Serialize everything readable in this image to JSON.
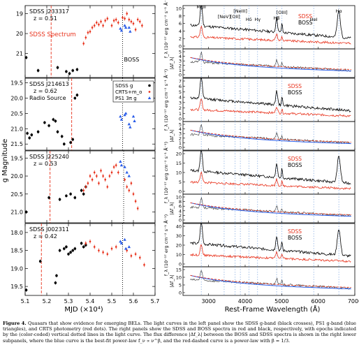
{
  "figure": {
    "left_xlabel": "MJD (×10⁴)",
    "left_ylabel": "g Magnitude",
    "right_xlabel": "Rest-Frame Wavelength (Å)",
    "left_xticks": [
      "5.1",
      "5.2",
      "5.3",
      "5.4",
      "5.5",
      "5.6",
      "5.7"
    ],
    "right_xticks": [
      "3000",
      "4000",
      "5000",
      "6000",
      "7000"
    ],
    "spec_ylabel": "f_λ (10⁻¹⁷ erg cm⁻² s⁻¹ Å⁻¹)",
    "diff_ylabel": "|Δf_λ|",
    "line_labels": [
      "MgII",
      "[NeV]",
      "[OII]",
      "[NeIII]",
      "Hδ",
      "Hγ",
      "Hβ",
      "[OIII]",
      "HeI",
      "Hα"
    ],
    "spec_legend": [
      "SDSS",
      "BOSS"
    ]
  },
  "colors": {
    "sdss": "#e8321c",
    "boss": "#000000",
    "crts": "#e8321c",
    "ps1": "#2a5ce8",
    "fit": "#2a5ce8",
    "vline": "#7da6e0"
  },
  "chart_data": [
    {
      "type": "scatter",
      "label": "SDSS J233317",
      "redshift": "z = 0.51",
      "annotations": [
        "SDSS Spectrum",
        "BOSS"
      ],
      "yticks": [
        "19",
        "20",
        "21"
      ],
      "ylim": [
        22.2,
        18.6
      ],
      "series": [
        {
          "name": "SDSS g",
          "marker": "circle",
          "x": [
            5.105,
            5.16,
            5.25,
            5.29,
            5.305,
            5.32,
            5.34
          ],
          "y": [
            21.2,
            21.85,
            21.7,
            21.9,
            22.0,
            21.85,
            21.8
          ]
        },
        {
          "name": "CRTS+m_o",
          "marker": "dot",
          "x": [
            5.37,
            5.38,
            5.39,
            5.4,
            5.41,
            5.42,
            5.43,
            5.44,
            5.45,
            5.46,
            5.47,
            5.48,
            5.5,
            5.51,
            5.52,
            5.53,
            5.55,
            5.56,
            5.57,
            5.58,
            5.59,
            5.6,
            5.61,
            5.62,
            5.63,
            5.64
          ],
          "y": [
            20.5,
            20.2,
            19.95,
            19.9,
            19.7,
            19.6,
            19.45,
            19.55,
            19.4,
            19.6,
            19.35,
            19.25,
            19.6,
            19.35,
            19.3,
            19.45,
            19.2,
            19.25,
            19.0,
            19.3,
            19.4,
            19.5,
            19.8,
            19.3,
            19.4,
            19.6
          ]
        },
        {
          "name": "PS1 3π g",
          "marker": "triangle",
          "x": [
            5.54,
            5.545,
            5.56,
            5.565,
            5.58,
            5.585
          ],
          "y": [
            19.75,
            19.85,
            19.6,
            19.7,
            19.7,
            19.9
          ]
        }
      ],
      "vlines": [
        {
          "x": 5.22,
          "style": "dashed",
          "color": "red"
        },
        {
          "x": 5.55,
          "style": "dotted",
          "color": "black"
        }
      ]
    },
    {
      "type": "scatter",
      "label": "SDSS J214613",
      "redshift": "z = 0.62",
      "note": "Radio Source",
      "legend": [
        "SDSS g",
        "CRTS+m_o",
        "PS1 3π g"
      ],
      "legend_position": "top-right",
      "yticks": [
        "19.5",
        "20.0",
        "20.5",
        "21.0",
        "21.5"
      ],
      "ylim": [
        21.7,
        19.35
      ],
      "series": [
        {
          "name": "SDSS g",
          "marker": "circle",
          "x": [
            5.11,
            5.12,
            5.13,
            5.16,
            5.19,
            5.21,
            5.23,
            5.24,
            5.25,
            5.27,
            5.28,
            5.31,
            5.32,
            5.33,
            5.34
          ],
          "y": [
            21.15,
            21.3,
            21.2,
            21.1,
            20.8,
            20.9,
            20.7,
            20.75,
            21.1,
            21.25,
            21.5,
            21.45,
            21.35,
            20.0,
            19.9
          ]
        },
        {
          "name": "CRTS+m_o",
          "marker": "dot",
          "x": [],
          "y": []
        },
        {
          "name": "PS1 3π g",
          "marker": "triangle",
          "x": [
            5.54,
            5.545,
            5.56,
            5.565,
            5.58,
            5.585,
            5.6,
            5.605
          ],
          "y": [
            20.6,
            20.7,
            20.55,
            20.5,
            20.85,
            20.95,
            20.6,
            20.75
          ]
        }
      ],
      "vlines": [
        {
          "x": 5.315,
          "style": "dashed",
          "color": "red"
        },
        {
          "x": 5.55,
          "style": "dotted",
          "color": "black"
        }
      ]
    },
    {
      "type": "scatter",
      "label": "SDSS J225240",
      "redshift": "z = 0.53",
      "yticks": [
        "19.5",
        "20.0",
        "20.5",
        "21.0"
      ],
      "ylim": [
        21.3,
        19.3
      ],
      "series": [
        {
          "name": "SDSS g",
          "marker": "circle",
          "x": [
            5.105,
            5.21,
            5.26,
            5.29,
            5.31,
            5.33,
            5.36,
            5.37,
            5.38
          ],
          "y": [
            21.0,
            20.6,
            20.65,
            20.55,
            20.5,
            20.6,
            20.4,
            20.5,
            20.3
          ]
        },
        {
          "name": "CRTS+m_o",
          "marker": "dot",
          "x": [
            5.37,
            5.38,
            5.39,
            5.4,
            5.41,
            5.42,
            5.43,
            5.44,
            5.45,
            5.46,
            5.47,
            5.48,
            5.49,
            5.5,
            5.51,
            5.52,
            5.53,
            5.56,
            5.57,
            5.58,
            5.59,
            5.6,
            5.61,
            5.62
          ],
          "y": [
            20.4,
            20.3,
            20.2,
            20.0,
            20.1,
            19.9,
            20.0,
            20.2,
            19.85,
            20.0,
            20.1,
            20.3,
            20.0,
            19.9,
            19.75,
            19.7,
            19.9,
            20.1,
            20.3,
            20.4,
            20.2,
            20.5,
            20.7,
            20.9
          ]
        },
        {
          "name": "PS1 3π g",
          "marker": "triangle",
          "x": [
            5.54,
            5.545,
            5.56,
            5.57,
            5.58
          ],
          "y": [
            19.6,
            19.7,
            19.75,
            19.9,
            20.0
          ]
        }
      ],
      "vlines": [
        {
          "x": 5.215,
          "style": "dashed",
          "color": "red"
        },
        {
          "x": 5.555,
          "style": "dotted",
          "color": "black"
        }
      ]
    },
    {
      "type": "scatter",
      "label": "SDSS J002311",
      "redshift": "z = 0.42",
      "yticks": [
        "18.0",
        "18.5",
        "19.0",
        "19.5"
      ],
      "ylim": [
        19.75,
        17.75
      ],
      "series": [
        {
          "name": "SDSS g",
          "marker": "circle",
          "x": [
            5.105,
            5.17,
            5.24,
            5.245,
            5.26,
            5.28,
            5.29,
            5.3,
            5.31,
            5.32,
            5.33,
            5.36,
            5.37,
            5.38
          ],
          "y": [
            19.6,
            18.8,
            19.4,
            19.2,
            18.5,
            18.45,
            18.4,
            18.6,
            18.55,
            18.5,
            18.45,
            18.3,
            18.4,
            18.35
          ]
        },
        {
          "name": "CRTS+m_o",
          "marker": "dot",
          "x": [
            5.38,
            5.4,
            5.42,
            5.44,
            5.46,
            5.48,
            5.5,
            5.52,
            5.57,
            5.59,
            5.61,
            5.63,
            5.65
          ],
          "y": [
            18.3,
            18.25,
            18.4,
            18.5,
            18.55,
            18.6,
            18.45,
            18.4,
            18.5,
            18.65,
            18.6,
            18.7,
            18.9
          ]
        },
        {
          "name": "PS1 3π g",
          "marker": "triangle",
          "x": [
            5.54,
            5.545,
            5.56,
            5.565,
            5.58
          ],
          "y": [
            18.25,
            18.3,
            18.2,
            18.45,
            18.4
          ]
        }
      ],
      "vlines": [
        {
          "x": 5.175,
          "style": "dashed",
          "color": "red"
        },
        {
          "x": 5.55,
          "style": "dotted",
          "color": "black"
        }
      ]
    }
  ],
  "spectra_panels": [
    {
      "flux_ticks": [
        "10",
        "8",
        "6",
        "4",
        "2",
        "0"
      ],
      "diff_ticks": [
        "5",
        "4",
        "3",
        "2",
        "1",
        "0"
      ],
      "wave_lines": [
        2800,
        3426,
        3727,
        3869,
        4102,
        4340,
        4861,
        5007,
        5876,
        6563
      ]
    },
    {
      "flux_ticks": [
        "7",
        "6",
        "5",
        "4",
        "3",
        "2",
        "1",
        "0"
      ],
      "diff_ticks": [
        "5",
        "4",
        "3",
        "2",
        "1",
        "0"
      ],
      "wave_lines": [
        2800,
        3426,
        3727,
        3869,
        4102,
        4340,
        4861,
        5007,
        5876,
        6563
      ]
    },
    {
      "flux_ticks": [
        "20",
        "15",
        "10",
        "5",
        "0"
      ],
      "diff_ticks": [
        "10",
        "8",
        "6",
        "4",
        "2",
        "0"
      ],
      "wave_lines": [
        2800,
        3426,
        3727,
        3869,
        4102,
        4340,
        4861,
        5007,
        5876,
        6563
      ]
    },
    {
      "flux_ticks": [
        "40",
        "30",
        "20",
        "10",
        "0"
      ],
      "diff_ticks": [
        "15",
        "10",
        "5",
        "0"
      ],
      "wave_lines": [
        2800,
        3426,
        3727,
        3869,
        4102,
        4340,
        4861,
        5007,
        5876,
        6563
      ]
    }
  ],
  "caption": {
    "lead": "Figure 4.",
    "text": "Quasars that show evidence for emerging BELs. The light curves in the left panel show the SDSS g-band (black crosses), PS1 g-band (blue triangles), and CRTS photometry (red dots). The right panels show the SDSS and BOSS spectra in red and black, respectively, with epochs indicated by the (color-coded) vertical dotted lines in the light curve. The flux difference |Δf_λ| between the BOSS and SDSS spectra is shown in the right lower subpanels, where the blue curve is the best-fit power-law f_ν ∝ ν^β, and the red-dashed curve is a power-law with β = 1/3."
  }
}
